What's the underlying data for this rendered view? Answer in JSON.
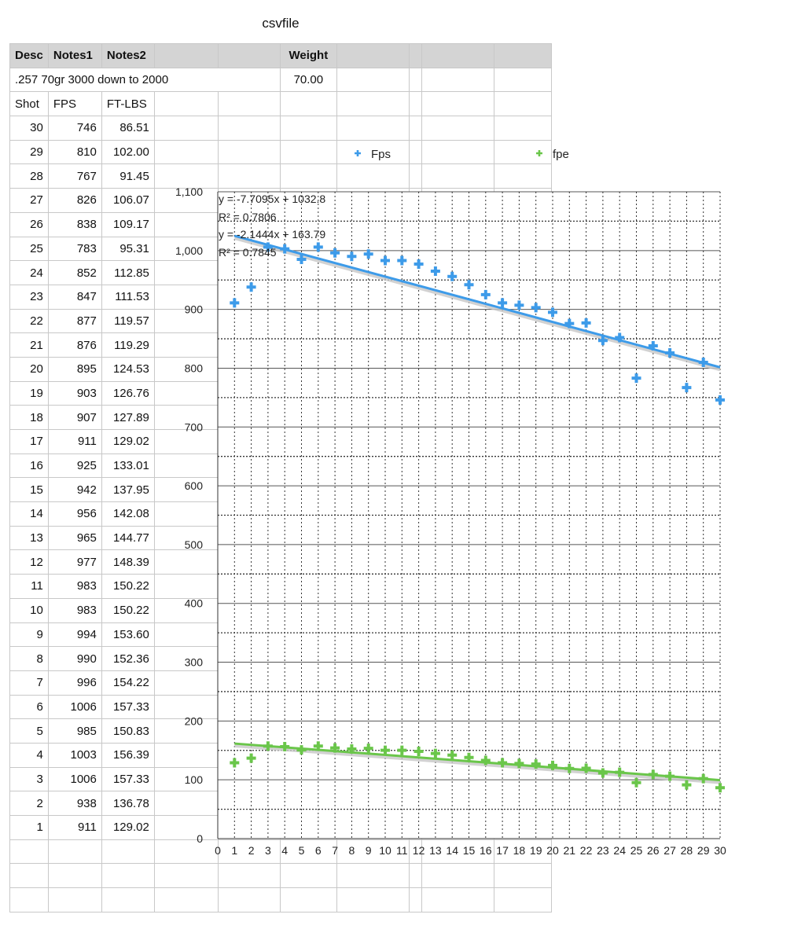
{
  "sheet": {
    "title": "csvfile",
    "header": [
      "Desc",
      "Notes1",
      "Notes2",
      "",
      "",
      "Weight",
      "",
      "",
      "",
      ""
    ],
    "desc_row": {
      "text": ".257 70gr 3000 down to 2000",
      "weight": "70.00"
    },
    "col_header": [
      "Shot",
      "FPS",
      "FT-LBS"
    ],
    "rows": [
      [
        "30",
        "746",
        "86.51"
      ],
      [
        "29",
        "810",
        "102.00"
      ],
      [
        "28",
        "767",
        "91.45"
      ],
      [
        "27",
        "826",
        "106.07"
      ],
      [
        "26",
        "838",
        "109.17"
      ],
      [
        "25",
        "783",
        "95.31"
      ],
      [
        "24",
        "852",
        "112.85"
      ],
      [
        "23",
        "847",
        "111.53"
      ],
      [
        "22",
        "877",
        "119.57"
      ],
      [
        "21",
        "876",
        "119.29"
      ],
      [
        "20",
        "895",
        "124.53"
      ],
      [
        "19",
        "903",
        "126.76"
      ],
      [
        "18",
        "907",
        "127.89"
      ],
      [
        "17",
        "911",
        "129.02"
      ],
      [
        "16",
        "925",
        "133.01"
      ],
      [
        "15",
        "942",
        "137.95"
      ],
      [
        "14",
        "956",
        "142.08"
      ],
      [
        "13",
        "965",
        "144.77"
      ],
      [
        "12",
        "977",
        "148.39"
      ],
      [
        "11",
        "983",
        "150.22"
      ],
      [
        "10",
        "983",
        "150.22"
      ],
      [
        "9",
        "994",
        "153.60"
      ],
      [
        "8",
        "990",
        "152.36"
      ],
      [
        "7",
        "996",
        "154.22"
      ],
      [
        "6",
        "1006",
        "157.33"
      ],
      [
        "5",
        "985",
        "150.83"
      ],
      [
        "4",
        "1003",
        "156.39"
      ],
      [
        "3",
        "1006",
        "157.33"
      ],
      [
        "2",
        "938",
        "136.78"
      ],
      [
        "1",
        "911",
        "129.02"
      ]
    ]
  },
  "chart_data": {
    "type": "scatter",
    "x": [
      1,
      2,
      3,
      4,
      5,
      6,
      7,
      8,
      9,
      10,
      11,
      12,
      13,
      14,
      15,
      16,
      17,
      18,
      19,
      20,
      21,
      22,
      23,
      24,
      25,
      26,
      27,
      28,
      29,
      30
    ],
    "series": [
      {
        "name": "Fps",
        "color": "#3d9be9",
        "values": [
          911,
          938,
          1006,
          1003,
          985,
          1006,
          996,
          990,
          994,
          983,
          983,
          977,
          965,
          956,
          942,
          925,
          911,
          907,
          903,
          895,
          876,
          877,
          847,
          852,
          783,
          838,
          826,
          767,
          810,
          746
        ],
        "trendline": {
          "slope": -7.7095,
          "intercept": 1032.8,
          "equation": "y = -7.7095x + 1032.8",
          "r2": "R² = 0.7806"
        }
      },
      {
        "name": "fpe",
        "color": "#6ac64a",
        "values": [
          129.02,
          136.78,
          157.33,
          156.39,
          150.83,
          157.33,
          154.22,
          152.36,
          153.6,
          150.22,
          150.22,
          148.39,
          144.77,
          142.08,
          137.95,
          133.01,
          129.02,
          127.89,
          126.76,
          124.53,
          119.29,
          119.57,
          111.53,
          112.85,
          95.31,
          109.17,
          106.07,
          91.45,
          102.0,
          86.51
        ],
        "trendline": {
          "slope": -2.1444,
          "intercept": 163.79,
          "equation": "y = -2.1444x + 163.79",
          "r2": "R² = 0.7845"
        }
      }
    ],
    "xlim": [
      0,
      30
    ],
    "ylim": [
      0,
      1100
    ],
    "yticks": [
      0,
      100,
      200,
      300,
      400,
      500,
      600,
      700,
      800,
      900,
      1000,
      1100
    ],
    "ytick_labels": [
      "0",
      "100",
      "200",
      "300",
      "400",
      "500",
      "600",
      "700",
      "800",
      "900",
      "1,000",
      "1,100"
    ],
    "xticks": [
      0,
      1,
      2,
      3,
      4,
      5,
      6,
      7,
      8,
      9,
      10,
      11,
      12,
      13,
      14,
      15,
      16,
      17,
      18,
      19,
      20,
      21,
      22,
      23,
      24,
      25,
      26,
      27,
      28,
      29,
      30
    ],
    "grid": true,
    "legend": "top"
  }
}
